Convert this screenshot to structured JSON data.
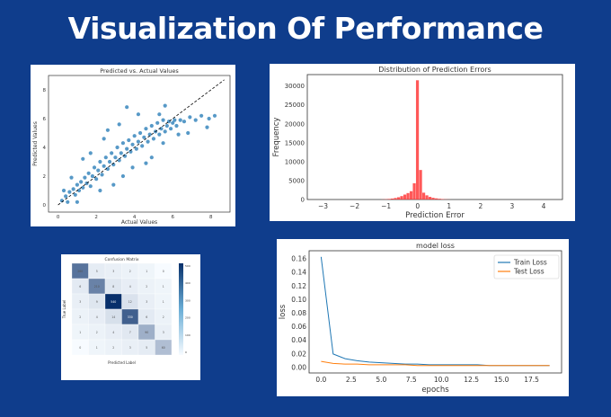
{
  "page": {
    "headline": "Visualization Of Performance"
  },
  "colors": {
    "background": "#0f3d8c",
    "scatter": "#1f77b4",
    "histogram": "#ff3b3b",
    "train_loss": "#1f77b4",
    "test_loss": "#ff7f0e",
    "heatmap_dark": "#08306b"
  },
  "chart_data": [
    {
      "type": "scatter",
      "title": "Predicted vs. Actual Values",
      "xlabel": "Actual Values",
      "ylabel": "Predicted Values",
      "xlim": [
        -0.5,
        9
      ],
      "ylim": [
        -0.5,
        9
      ],
      "xticks": [
        "0",
        "2",
        "4",
        "6",
        "8"
      ],
      "yticks": [
        "0",
        "2",
        "4",
        "6",
        "8"
      ],
      "reference_line": "y = x (dashed)",
      "points": [
        [
          0.2,
          0.3
        ],
        [
          0.4,
          0.6
        ],
        [
          0.5,
          0.2
        ],
        [
          0.6,
          0.9
        ],
        [
          0.8,
          1.1
        ],
        [
          0.9,
          0.7
        ],
        [
          1.0,
          1.4
        ],
        [
          1.1,
          1.0
        ],
        [
          1.2,
          1.6
        ],
        [
          1.3,
          1.2
        ],
        [
          1.4,
          1.9
        ],
        [
          1.5,
          1.5
        ],
        [
          1.6,
          2.2
        ],
        [
          1.7,
          1.3
        ],
        [
          1.8,
          2.0
        ],
        [
          1.9,
          2.6
        ],
        [
          2.0,
          1.8
        ],
        [
          2.1,
          2.4
        ],
        [
          2.2,
          3.0
        ],
        [
          2.3,
          2.1
        ],
        [
          2.4,
          2.7
        ],
        [
          2.5,
          3.3
        ],
        [
          2.6,
          2.5
        ],
        [
          2.7,
          3.0
        ],
        [
          2.8,
          3.6
        ],
        [
          2.9,
          2.8
        ],
        [
          3.0,
          3.3
        ],
        [
          3.1,
          4.0
        ],
        [
          3.2,
          3.1
        ],
        [
          3.3,
          3.6
        ],
        [
          3.4,
          4.3
        ],
        [
          3.5,
          3.4
        ],
        [
          3.6,
          3.9
        ],
        [
          3.7,
          4.5
        ],
        [
          3.8,
          3.7
        ],
        [
          3.9,
          4.2
        ],
        [
          4.0,
          4.8
        ],
        [
          4.1,
          3.9
        ],
        [
          4.2,
          4.4
        ],
        [
          4.3,
          5.0
        ],
        [
          4.4,
          4.1
        ],
        [
          4.5,
          4.7
        ],
        [
          4.6,
          5.3
        ],
        [
          4.7,
          4.4
        ],
        [
          4.8,
          4.9
        ],
        [
          4.9,
          5.5
        ],
        [
          5.0,
          4.6
        ],
        [
          5.1,
          5.1
        ],
        [
          5.2,
          5.7
        ],
        [
          5.3,
          4.9
        ],
        [
          5.4,
          5.3
        ],
        [
          5.5,
          5.9
        ],
        [
          5.6,
          5.1
        ],
        [
          5.7,
          5.5
        ],
        [
          5.8,
          5.8
        ],
        [
          5.9,
          5.3
        ],
        [
          6.0,
          5.7
        ],
        [
          6.1,
          5.9
        ],
        [
          6.2,
          5.5
        ],
        [
          6.4,
          5.9
        ],
        [
          6.6,
          5.8
        ],
        [
          6.9,
          6.1
        ],
        [
          7.2,
          5.9
        ],
        [
          7.5,
          6.2
        ],
        [
          7.9,
          6.0
        ],
        [
          8.2,
          6.2
        ],
        [
          1.3,
          3.2
        ],
        [
          2.4,
          4.6
        ],
        [
          3.2,
          5.6
        ],
        [
          4.2,
          6.3
        ],
        [
          2.9,
          1.4
        ],
        [
          3.9,
          2.6
        ],
        [
          4.9,
          3.3
        ],
        [
          5.5,
          4.3
        ],
        [
          6.3,
          4.9
        ],
        [
          0.7,
          1.9
        ],
        [
          1.7,
          3.6
        ],
        [
          2.6,
          5.2
        ],
        [
          3.6,
          6.8
        ],
        [
          5.6,
          6.9
        ],
        [
          6.8,
          5.0
        ],
        [
          7.8,
          5.4
        ],
        [
          4.6,
          2.9
        ],
        [
          3.4,
          2.0
        ],
        [
          2.2,
          1.0
        ],
        [
          1.0,
          0.2
        ],
        [
          0.3,
          1.0
        ],
        [
          5.3,
          6.3
        ]
      ]
    },
    {
      "type": "bar",
      "title": "Distribution of Prediction Errors",
      "xlabel": "Prediction Error",
      "ylabel": "Frequency",
      "xlim": [
        -3.5,
        4.6
      ],
      "ylim": [
        0,
        33000
      ],
      "xticks": [
        "−3",
        "−2",
        "−1",
        "0",
        "1",
        "2",
        "3",
        "4"
      ],
      "yticks": [
        "0",
        "5000",
        "10000",
        "15000",
        "20000",
        "25000",
        "30000"
      ],
      "bin_width": 0.1,
      "bins": [
        {
          "x": -1.1,
          "value": 40
        },
        {
          "x": -1.0,
          "value": 80
        },
        {
          "x": -0.9,
          "value": 150
        },
        {
          "x": -0.8,
          "value": 250
        },
        {
          "x": -0.7,
          "value": 400
        },
        {
          "x": -0.6,
          "value": 600
        },
        {
          "x": -0.5,
          "value": 900
        },
        {
          "x": -0.4,
          "value": 1300
        },
        {
          "x": -0.3,
          "value": 1700
        },
        {
          "x": -0.2,
          "value": 2200
        },
        {
          "x": -0.1,
          "value": 4300
        },
        {
          "x": 0.0,
          "value": 31500
        },
        {
          "x": 0.1,
          "value": 7800
        },
        {
          "x": 0.2,
          "value": 1800
        },
        {
          "x": 0.3,
          "value": 1100
        },
        {
          "x": 0.4,
          "value": 700
        },
        {
          "x": 0.5,
          "value": 450
        },
        {
          "x": 0.6,
          "value": 300
        },
        {
          "x": 0.7,
          "value": 200
        },
        {
          "x": 0.8,
          "value": 120
        },
        {
          "x": 0.9,
          "value": 60
        },
        {
          "x": 1.0,
          "value": 30
        }
      ]
    },
    {
      "type": "heatmap",
      "title": "Confusion Matrix",
      "xlabel": "Predicted Label",
      "ylabel": "True Label",
      "colorbar_ticks": [
        "500",
        "400",
        "300",
        "200",
        "100",
        "0"
      ],
      "matrix": [
        [
          260,
          5,
          3,
          2,
          1,
          0
        ],
        [
          6,
          210,
          8,
          4,
          2,
          1
        ],
        [
          3,
          9,
          540,
          12,
          3,
          1
        ],
        [
          2,
          4,
          14,
          330,
          6,
          2
        ],
        [
          1,
          2,
          4,
          7,
          90,
          3
        ],
        [
          0,
          1,
          2,
          3,
          5,
          60
        ]
      ]
    },
    {
      "type": "line",
      "title": "model loss",
      "xlabel": "epochs",
      "ylabel": "loss",
      "xlim": [
        -1,
        20
      ],
      "ylim": [
        -0.008,
        0.172
      ],
      "xticks": [
        "0.0",
        "2.5",
        "5.0",
        "7.5",
        "10.0",
        "12.5",
        "15.0",
        "17.5"
      ],
      "yticks": [
        "0.00",
        "0.02",
        "0.04",
        "0.06",
        "0.08",
        "0.10",
        "0.12",
        "0.14",
        "0.16"
      ],
      "legend_position": "top-right",
      "x": [
        0,
        1,
        2,
        3,
        4,
        5,
        6,
        7,
        8,
        9,
        10,
        11,
        12,
        13,
        14,
        15,
        16,
        17,
        18,
        19
      ],
      "series": [
        {
          "name": "Train Loss",
          "values": [
            0.163,
            0.02,
            0.013,
            0.01,
            0.008,
            0.007,
            0.006,
            0.005,
            0.005,
            0.004,
            0.004,
            0.004,
            0.004,
            0.004,
            0.003,
            0.003,
            0.003,
            0.003,
            0.003,
            0.003
          ]
        },
        {
          "name": "Test Loss",
          "values": [
            0.009,
            0.006,
            0.005,
            0.005,
            0.004,
            0.004,
            0.004,
            0.004,
            0.003,
            0.003,
            0.003,
            0.003,
            0.003,
            0.003,
            0.003,
            0.003,
            0.003,
            0.003,
            0.003,
            0.003
          ]
        }
      ]
    }
  ]
}
